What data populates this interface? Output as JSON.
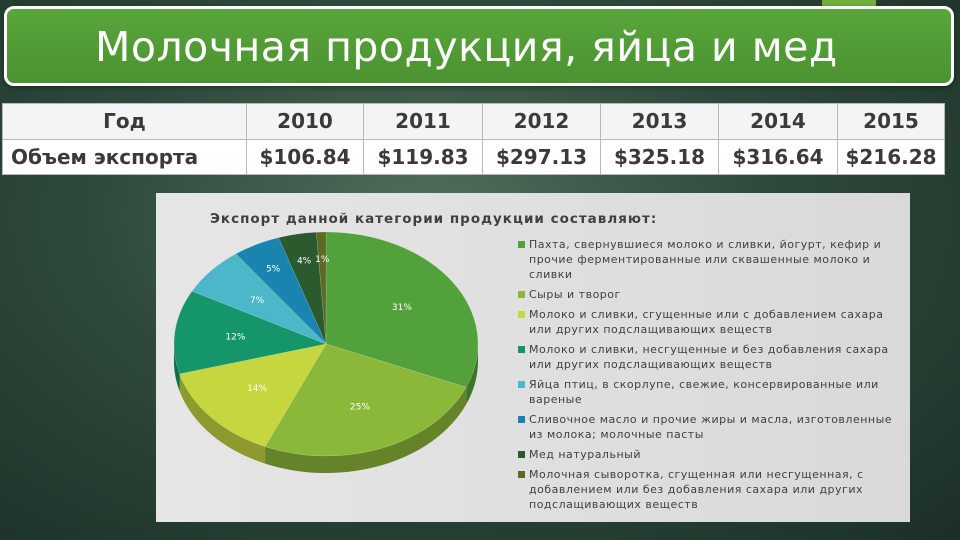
{
  "title": "Молочная продукция, яйца и мед",
  "table": {
    "year_label": "Год",
    "volume_label": "Объем экспорта",
    "years": [
      "2010",
      "2011",
      "2012",
      "2013",
      "2014",
      "2015"
    ],
    "values": [
      "$106.84",
      "$119.83",
      "$297.13",
      "$325.18",
      "$316.64",
      "$216.28"
    ]
  },
  "chart_data": {
    "type": "pie",
    "title": "Экспорт данной категории продукции составляют:",
    "legend_position": "right",
    "slices": [
      {
        "label": "Пахта, свернувшиеся молоко и сливки, йогурт, кефир и прочие ферментированные или сквашенные молоко и сливки",
        "value": 31,
        "value_label": "31%",
        "color": "#52a13b"
      },
      {
        "label": "Сыры и творог",
        "value": 25,
        "value_label": "25%",
        "color": "#8cb83a"
      },
      {
        "label": "Молоко и сливки, сгущенные или с добавлением сахара или других подслащивающих веществ",
        "value": 14,
        "value_label": "14%",
        "color": "#c5d63e"
      },
      {
        "label": "Молоко и сливки, несгущенные и без добавления сахара или других подслащивающих веществ",
        "value": 12,
        "value_label": "12%",
        "color": "#14956a"
      },
      {
        "label": "Яйца птиц, в скорлупе, свежие, консервированные или вареные",
        "value": 7,
        "value_label": "7%",
        "color": "#4bb7c8"
      },
      {
        "label": "Сливочное масло и прочие жиры и масла, изготовленные из молока; молочные пасты",
        "value": 5,
        "value_label": "5%",
        "color": "#1a84b0"
      },
      {
        "label": "Мед натуральный",
        "value": 4,
        "value_label": "4%",
        "color": "#2b5a2e"
      },
      {
        "label": "Молочная сыворотка, сгущенная или несгущенная, с добавлением или без добавления сахара или других подслащивающих веществ",
        "value": 1,
        "value_label": "1%",
        "color": "#5c6a24"
      }
    ]
  }
}
